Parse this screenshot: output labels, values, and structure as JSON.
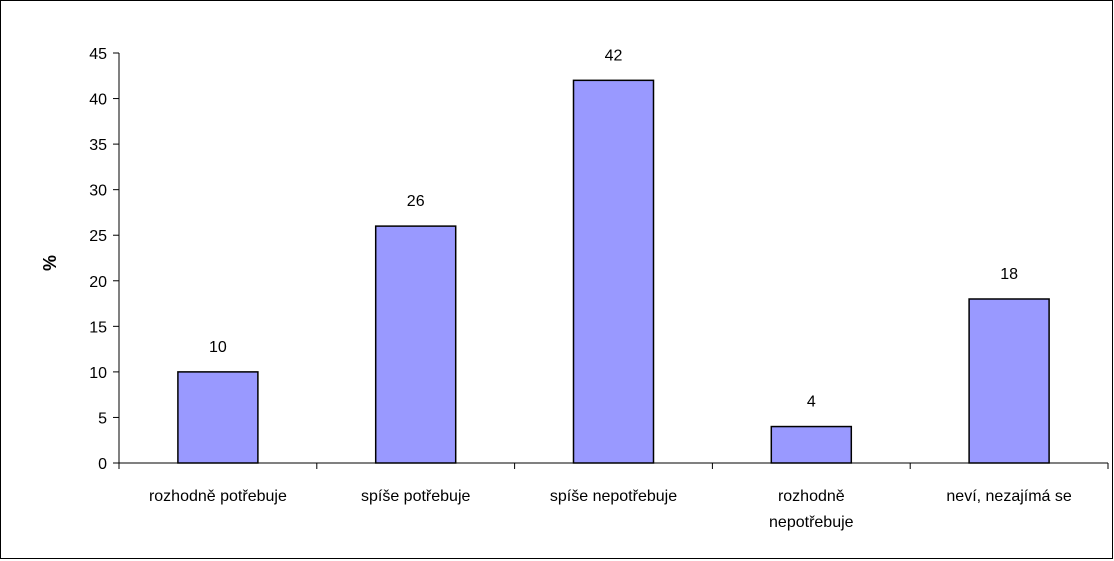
{
  "chart_data": {
    "type": "bar",
    "title": "",
    "xlabel": "",
    "ylabel": "%",
    "ylim": [
      0,
      45
    ],
    "yticks": [
      0,
      5,
      10,
      15,
      20,
      25,
      30,
      35,
      40,
      45
    ],
    "grid": false,
    "legend": "none",
    "categories": [
      [
        "rozhodně potřebuje"
      ],
      [
        "spíše potřebuje"
      ],
      [
        "spíše nepotřebuje"
      ],
      [
        "rozhodně",
        "nepotřebuje"
      ],
      [
        "neví, nezajímá se"
      ]
    ],
    "series": [
      {
        "values": [
          10,
          26,
          42,
          4,
          18
        ],
        "color": "#9999ff",
        "data_labels": [
          "10",
          "26",
          "42",
          "4",
          "18"
        ]
      }
    ]
  }
}
